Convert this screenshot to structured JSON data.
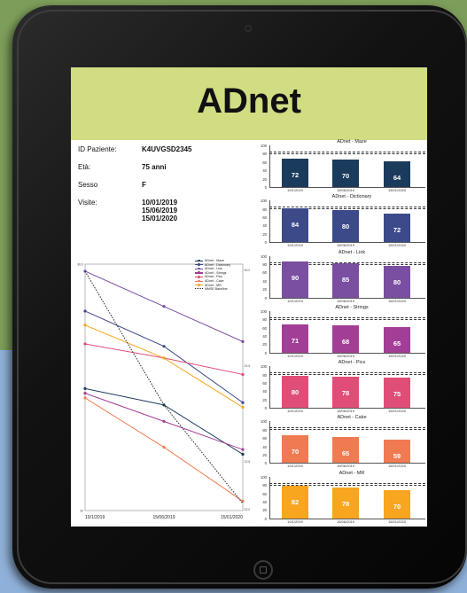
{
  "app": {
    "title": "ADnet"
  },
  "patient": {
    "id_label": "ID Paziente:",
    "id_value": "K4UVGSD2345",
    "age_label": "Età:",
    "age_value": "75 anni",
    "sex_label": "Sesso",
    "sex_value": "F",
    "visits_label": "Visite:",
    "visits": [
      "10/01/2019",
      "15/06/2019",
      "15/01/2020"
    ]
  },
  "colors": {
    "header": "#d2dc82",
    "maze": "#1b3b5c",
    "dictionary": "#3c4a8a",
    "link": "#7a4ea0",
    "strings": "#a33e96",
    "pics": "#e04e78",
    "cake": "#f07a52",
    "mr": "#f8a520"
  },
  "chart_data": [
    {
      "type": "line",
      "x": [
        "10/1/2019",
        "15/06/2019",
        "15/01/2020"
      ],
      "ylim": [
        20,
        30.5
      ],
      "y_ticks": [
        "20",
        "",
        "",
        "",
        "",
        "",
        "30.0"
      ],
      "right_ticks": [
        "30.0",
        "",
        "24.5",
        "",
        "22.5",
        "22.0"
      ],
      "series": [
        {
          "name": "ADnet - Maze",
          "color": "#1b3b5c",
          "values": [
            25.2,
            24.5,
            22.4
          ]
        },
        {
          "name": "ADnet - Dictionary",
          "color": "#3c4a8a",
          "values": [
            28.5,
            27.0,
            24.6
          ]
        },
        {
          "name": "ADnet - Link",
          "color": "#7a4ea0",
          "values": [
            30.2,
            28.7,
            27.2
          ]
        },
        {
          "name": "ADnet - Strings",
          "color": "#a33e96",
          "values": [
            25.0,
            23.8,
            22.6
          ]
        },
        {
          "name": "ADnet - Pics",
          "color": "#e04e78",
          "values": [
            27.1,
            26.5,
            25.8
          ]
        },
        {
          "name": "ADnet - Cake",
          "color": "#f07a52",
          "values": [
            24.8,
            22.7,
            20.4
          ]
        },
        {
          "name": "ADnet - MR",
          "color": "#f8a520",
          "values": [
            27.9,
            26.5,
            24.4
          ]
        },
        {
          "name": "MMSE Baseline",
          "color": "#222222",
          "dashed": true,
          "values": [
            30.2,
            24.5,
            20.3
          ]
        }
      ]
    },
    {
      "type": "bar",
      "title": "ADnet - Maze",
      "categories": [
        "10/1/2019",
        "15/06/2019",
        "15/01/2020"
      ],
      "values": [
        72,
        70,
        64
      ],
      "ylim": [
        0,
        100
      ],
      "color": "#1b3b5c"
    },
    {
      "type": "bar",
      "title": "ADnet - Dictionary",
      "categories": [
        "10/1/2019",
        "15/06/2019",
        "15/01/2020"
      ],
      "values": [
        84,
        80,
        72
      ],
      "ylim": [
        0,
        100
      ],
      "color": "#3c4a8a"
    },
    {
      "type": "bar",
      "title": "ADnet - Link",
      "categories": [
        "10/1/2019",
        "15/06/2019",
        "15/01/2020"
      ],
      "values": [
        90,
        85,
        80
      ],
      "ylim": [
        0,
        100
      ],
      "color": "#7a4ea0"
    },
    {
      "type": "bar",
      "title": "ADnet - Strings",
      "categories": [
        "10/1/2019",
        "15/06/2019",
        "15/01/2020"
      ],
      "values": [
        71,
        68,
        65
      ],
      "ylim": [
        0,
        100
      ],
      "color": "#a33e96"
    },
    {
      "type": "bar",
      "title": "ADnet - Pics",
      "categories": [
        "10/1/2019",
        "15/06/2019",
        "15/01/2020"
      ],
      "values": [
        80,
        78,
        75
      ],
      "ylim": [
        0,
        100
      ],
      "color": "#e04e78"
    },
    {
      "type": "bar",
      "title": "ADnet - Cake",
      "categories": [
        "10/1/2019",
        "15/06/2019",
        "15/01/2020"
      ],
      "values": [
        70,
        65,
        59
      ],
      "ylim": [
        0,
        100
      ],
      "color": "#f07a52"
    },
    {
      "type": "bar",
      "title": "ADnet - MR",
      "categories": [
        "10/1/2019",
        "15/06/2019",
        "15/01/2020"
      ],
      "values": [
        82,
        78,
        70
      ],
      "ylim": [
        0,
        100
      ],
      "color": "#f8a520"
    }
  ],
  "bar_ticks": [
    "100",
    "80",
    "60",
    "40",
    "20",
    "0"
  ]
}
